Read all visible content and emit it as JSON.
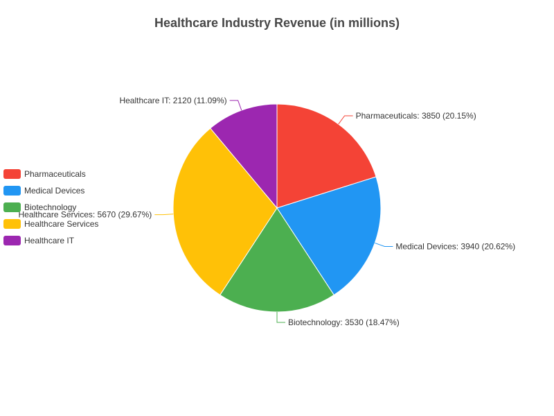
{
  "chart_data": {
    "type": "pie",
    "title": "Healthcare Industry Revenue (in millions)",
    "categories": [
      "Pharmaceuticals",
      "Medical Devices",
      "Biotechnology",
      "Healthcare Services",
      "Healthcare IT"
    ],
    "values": [
      3850,
      3940,
      3530,
      5670,
      2120
    ],
    "labels": [
      "Pharmaceuticals: 3850 (20.15%)",
      "Medical Devices: 3940 (20.62%)",
      "Biotechnology: 3530 (18.47%)",
      "Healthcare Services: 5670 (29.67%)",
      "Healthcare IT: 2120 (11.09%)"
    ],
    "colors": [
      "#f44336",
      "#2196f3",
      "#4caf50",
      "#ffc107",
      "#9c27b0"
    ],
    "legend": {
      "position": "left",
      "items": [
        "Pharmaceuticals",
        "Medical Devices",
        "Biotechnology",
        "Healthcare Services",
        "Healthcare IT"
      ]
    }
  }
}
